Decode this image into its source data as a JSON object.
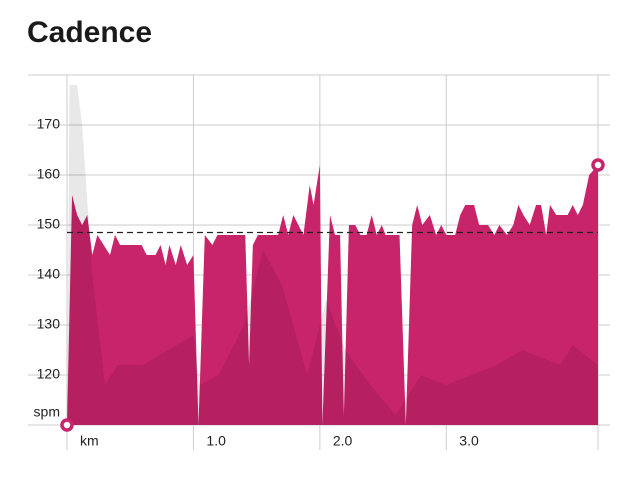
{
  "chart_data": {
    "type": "area",
    "title": "Cadence",
    "xlim": [
      0,
      4.2
    ],
    "xticks": [
      {
        "value": 0,
        "label": "km"
      },
      {
        "value": 1,
        "label": "1.0"
      },
      {
        "value": 2,
        "label": "2.0"
      },
      {
        "value": 3,
        "label": "3.0"
      }
    ],
    "ylim": [
      110,
      180
    ],
    "yticks": [
      {
        "value": 110,
        "label": "spm"
      },
      120,
      130,
      140,
      150,
      160,
      170
    ],
    "grid": true,
    "average": 148.5,
    "series": [
      {
        "color": "#c8246a",
        "x": [
          0,
          0.04,
          0.08,
          0.12,
          0.16,
          0.2,
          0.24,
          0.29,
          0.34,
          0.38,
          0.42,
          0.48,
          0.55,
          0.59,
          0.63,
          0.7,
          0.74,
          0.78,
          0.81,
          0.86,
          0.9,
          0.95,
          1.0,
          1.04,
          1.09,
          1.15,
          1.19,
          1.27,
          1.37,
          1.41,
          1.44,
          1.47,
          1.51,
          1.6,
          1.67,
          1.71,
          1.75,
          1.79,
          1.83,
          1.87,
          1.92,
          1.95,
          2.0,
          2.02,
          2.08,
          2.12,
          2.16,
          2.19,
          2.23,
          2.28,
          2.32,
          2.37,
          2.41,
          2.45,
          2.49,
          2.52,
          2.58,
          2.63,
          2.68,
          2.73,
          2.77,
          2.81,
          2.87,
          2.92,
          2.96,
          3.0,
          3.07,
          3.11,
          3.15,
          3.22,
          3.26,
          3.33,
          3.38,
          3.42,
          3.48,
          3.53,
          3.57,
          3.61,
          3.66,
          3.71,
          3.75,
          3.79,
          3.82,
          3.87,
          3.91,
          3.96,
          4.0,
          4.04,
          4.08,
          4.13,
          4.2
        ],
        "values": [
          110,
          156,
          152,
          150,
          152,
          144,
          148,
          146,
          144,
          148,
          146,
          146,
          146,
          146,
          144,
          144,
          146,
          142,
          146,
          142,
          146,
          142,
          144,
          110,
          148,
          146,
          148,
          148,
          148,
          148,
          122,
          146,
          148,
          148,
          148,
          152,
          148,
          152,
          150,
          148,
          158,
          154,
          162,
          110,
          152,
          148,
          148,
          112,
          150,
          150,
          148,
          148,
          152,
          148,
          150,
          148,
          148,
          148,
          110,
          150,
          154,
          150,
          152,
          148,
          150,
          148,
          148,
          152,
          154,
          154,
          150,
          150,
          148,
          150,
          148,
          150,
          154,
          152,
          150,
          154,
          154,
          148,
          154,
          152,
          152,
          152,
          154,
          152,
          154,
          160,
          162
        ]
      },
      {
        "color": "#000000",
        "x": [
          0,
          0.02,
          0.08,
          0.12,
          0.2,
          0.3,
          0.4,
          0.6,
          0.8,
          1.0,
          1.05,
          1.2,
          1.4,
          1.55,
          1.7,
          1.9,
          2.05,
          2.2,
          2.4,
          2.6,
          2.8,
          3.0,
          3.4,
          3.6,
          3.9,
          4.0,
          4.2
        ],
        "values": [
          110,
          178,
          178,
          170,
          140,
          118,
          122,
          122,
          125,
          128,
          118,
          120,
          130,
          145,
          138,
          120,
          135,
          125,
          118,
          112,
          120,
          118,
          122,
          125,
          122,
          126,
          122
        ]
      }
    ]
  }
}
